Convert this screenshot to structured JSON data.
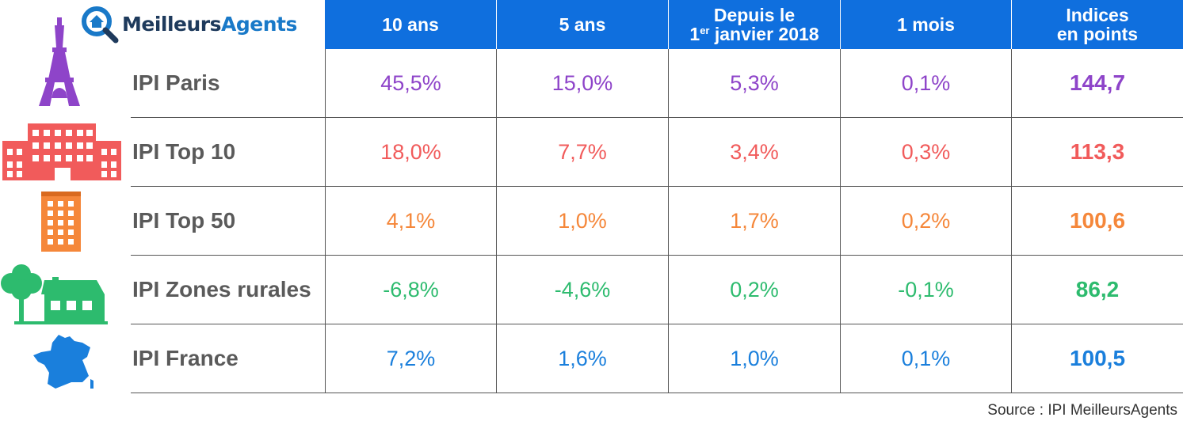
{
  "brand": {
    "prefix": "Meilleurs",
    "suffix": "Agents"
  },
  "columns": [
    {
      "line1": "10 ans"
    },
    {
      "line1": "5 ans"
    },
    {
      "line1": "Depuis le",
      "line2_sup": "er",
      "line2_pre": "1",
      "line2": " janvier 2018"
    },
    {
      "line1": "1 mois"
    },
    {
      "line1": "Indices",
      "line2": "en points"
    }
  ],
  "chart_data": {
    "type": "table",
    "columns": [
      "10 ans",
      "5 ans",
      "Depuis le 1er janvier 2018",
      "1 mois",
      "Indices en points"
    ],
    "rows": [
      {
        "label": "IPI Paris",
        "icon": "eiffel-tower-icon",
        "color": "#8e44c9",
        "values": [
          "45,5%",
          "15,0%",
          "5,3%",
          "0,1%",
          "144,7"
        ]
      },
      {
        "label": "IPI Top 10",
        "icon": "large-building-icon",
        "color": "#f15b5b",
        "values": [
          "18,0%",
          "7,7%",
          "3,4%",
          "0,3%",
          "113,3"
        ]
      },
      {
        "label": "IPI Top 50",
        "icon": "apartment-building-icon",
        "color": "#f5873a",
        "values": [
          "4,1%",
          "1,0%",
          "1,7%",
          "0,2%",
          "100,6"
        ]
      },
      {
        "label": "IPI Zones rurales",
        "icon": "tree-and-house-icon",
        "color": "#2dbb6e",
        "values": [
          "-6,8%",
          "-4,6%",
          "0,2%",
          "-0,1%",
          "86,2"
        ]
      },
      {
        "label": "IPI France",
        "icon": "france-map-icon",
        "color": "#1a7fdc",
        "values": [
          "7,2%",
          "1,6%",
          "1,0%",
          "0,1%",
          "100,5"
        ]
      }
    ]
  },
  "source": "Source : IPI MeilleursAgents"
}
